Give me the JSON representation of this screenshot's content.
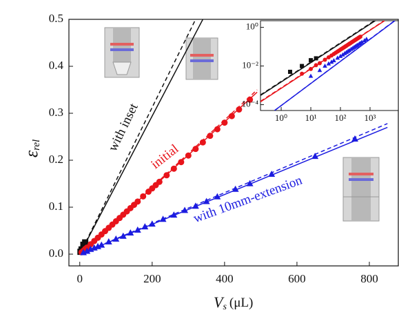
{
  "chart_data": {
    "type": "scatter",
    "x_label": "V",
    "x_label_sub": "s",
    "x_label_unit": "(μL)",
    "y_label": "ε",
    "y_label_sub": "rel",
    "xlim": [
      -30,
      880
    ],
    "xticks": [
      0,
      200,
      400,
      600,
      800
    ],
    "ylim": [
      -0.025,
      0.5
    ],
    "yticks": [
      {
        "value": 0,
        "label": "0.0"
      },
      0.1,
      0.2,
      0.3,
      0.4,
      0.5
    ],
    "series": [
      {
        "name": "with inset",
        "color": "#111111",
        "marker": "square",
        "x": [
          2,
          5,
          10,
          15
        ],
        "values": [
          0.005,
          0.01,
          0.02,
          0.025
        ]
      },
      {
        "name": "initial",
        "color": "#e8141b",
        "marker": "circle",
        "x": [
          5,
          10,
          15,
          20,
          30,
          40,
          50,
          60,
          70,
          80,
          90,
          100,
          110,
          120,
          130,
          140,
          150,
          160,
          175,
          190,
          200,
          210,
          220,
          240,
          260,
          280,
          300,
          320,
          340,
          360,
          380,
          400,
          420,
          440,
          470
        ],
        "values": [
          0.004,
          0.007,
          0.011,
          0.014,
          0.021,
          0.028,
          0.035,
          0.042,
          0.049,
          0.056,
          0.063,
          0.07,
          0.077,
          0.084,
          0.091,
          0.098,
          0.105,
          0.112,
          0.123,
          0.133,
          0.14,
          0.147,
          0.154,
          0.168,
          0.182,
          0.196,
          0.21,
          0.224,
          0.238,
          0.252,
          0.266,
          0.28,
          0.294,
          0.308,
          0.329
        ]
      },
      {
        "name": "with 10mm-extension",
        "color": "#1c1ce0",
        "marker": "triangle",
        "x": [
          10,
          20,
          30,
          40,
          50,
          60,
          80,
          100,
          120,
          140,
          160,
          180,
          200,
          230,
          260,
          290,
          320,
          350,
          380,
          430,
          470,
          530,
          650,
          760
        ],
        "values": [
          0.003,
          0.006,
          0.01,
          0.013,
          0.016,
          0.019,
          0.026,
          0.032,
          0.038,
          0.045,
          0.051,
          0.058,
          0.064,
          0.074,
          0.083,
          0.093,
          0.102,
          0.112,
          0.122,
          0.138,
          0.15,
          0.17,
          0.208,
          0.245
        ]
      }
    ],
    "lines": [
      {
        "color": "#111111",
        "dash": false,
        "x": [
          0,
          340
        ],
        "y": [
          0,
          0.5
        ]
      },
      {
        "color": "#111111",
        "dash": true,
        "x": [
          0,
          320
        ],
        "y": [
          0,
          0.5
        ]
      },
      {
        "color": "#e8141b",
        "dash": false,
        "x": [
          0,
          490
        ],
        "y": [
          0,
          0.345
        ]
      },
      {
        "color": "#e8141b",
        "dash": true,
        "x": [
          0,
          490
        ],
        "y": [
          0,
          0.35
        ]
      },
      {
        "color": "#1c1ce0",
        "dash": false,
        "x": [
          0,
          850
        ],
        "y": [
          0,
          0.27
        ]
      },
      {
        "color": "#1c1ce0",
        "dash": true,
        "x": [
          0,
          850
        ],
        "y": [
          0,
          0.278
        ]
      }
    ],
    "inset": {
      "log_scale": true,
      "xlim": [
        0.2,
        9000
      ],
      "ylim": [
        5e-05,
        2.2
      ],
      "xticks": [
        {
          "value": 1,
          "label": "10⁰"
        },
        {
          "value": 10,
          "label": "10¹"
        },
        {
          "value": 100,
          "label": "10²"
        },
        {
          "value": 1000,
          "label": "10³"
        }
      ],
      "yticks": [
        {
          "value": 1,
          "label": "10⁰"
        },
        {
          "value": 0.01,
          "label": "10⁻²"
        },
        {
          "value": 0.0001,
          "label": "10⁻⁴"
        }
      ],
      "lines": [
        {
          "color": "#111111",
          "dash": false,
          "x": [
            0.2,
            1500
          ],
          "y": [
            0.0003,
            2.2
          ]
        },
        {
          "color": "#111111",
          "dash": true,
          "x": [
            0.2,
            1400
          ],
          "y": [
            0.00032,
            2.2
          ]
        },
        {
          "color": "#e8141b",
          "dash": false,
          "x": [
            0.2,
            3100
          ],
          "y": [
            0.00014,
            2.2
          ]
        },
        {
          "color": "#e8141b",
          "dash": true,
          "x": [
            0.2,
            3000
          ],
          "y": [
            0.00015,
            2.2
          ]
        },
        {
          "color": "#1c1ce0",
          "dash": false,
          "x": [
            0.6,
            6900
          ],
          "y": [
            5e-05,
            2.2
          ]
        },
        {
          "color": "#1c1ce0",
          "dash": true,
          "x": [
            0.6,
            6700
          ],
          "y": [
            5e-05,
            2.2
          ]
        }
      ]
    }
  }
}
